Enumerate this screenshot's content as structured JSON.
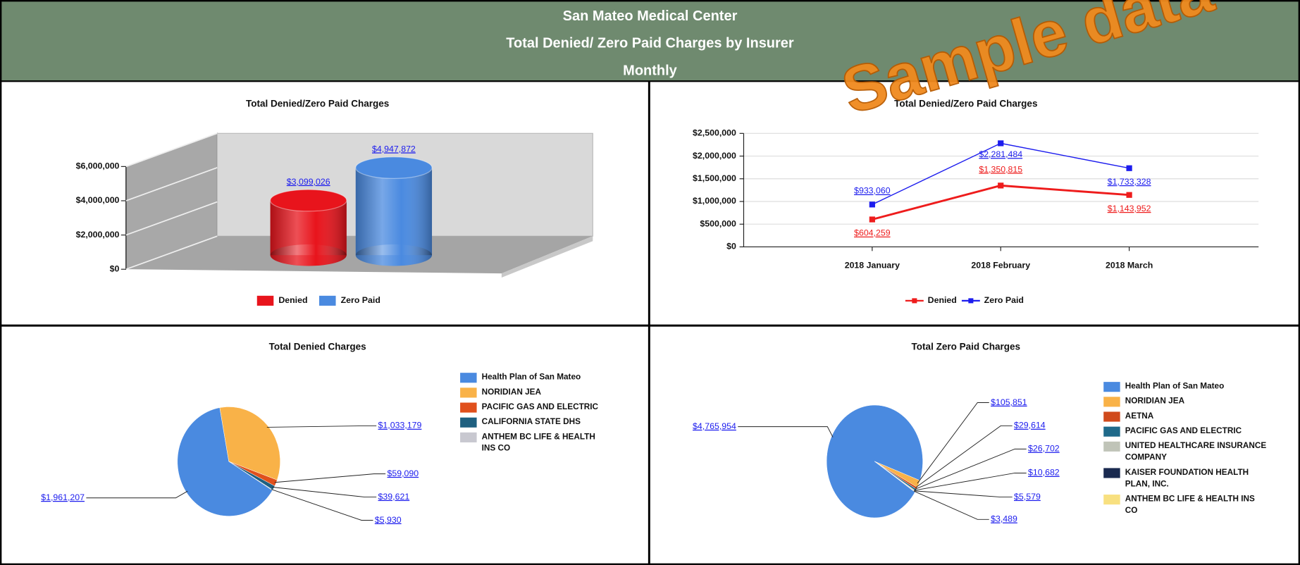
{
  "header": {
    "title": "San Mateo Medical Center",
    "subtitle": "Total Denied/ Zero Paid Charges by Insurer",
    "period": "Monthly"
  },
  "watermark": "Sample data",
  "chart_data": [
    {
      "type": "bar3d",
      "title": "Total Denied/Zero Paid Charges",
      "series": [
        {
          "name": "Denied",
          "color": "#e8141c",
          "values": [
            3099026
          ],
          "value_labels": [
            "$3,099,026"
          ]
        },
        {
          "name": "Zero Paid",
          "color": "#4a8ae0",
          "values": [
            4947872
          ],
          "value_labels": [
            "$4,947,872"
          ]
        }
      ],
      "ylim": [
        0,
        6000000
      ],
      "yticks": [
        {
          "value": 0,
          "label": "$0"
        },
        {
          "value": 2000000,
          "label": "$2,000,000"
        },
        {
          "value": 4000000,
          "label": "$4,000,000"
        },
        {
          "value": 6000000,
          "label": "$6,000,000"
        }
      ],
      "grid": true,
      "legend": "bottom"
    },
    {
      "type": "line",
      "title": "Total Denied/Zero Paid Charges",
      "categories": [
        "2018 January",
        "2018 February",
        "2018 March"
      ],
      "series": [
        {
          "name": "Denied",
          "color": "#ee1c1c",
          "values": [
            604259,
            1350815,
            1143952
          ],
          "value_labels": [
            "$604,259",
            "$1,350,815",
            "$1,143,952"
          ]
        },
        {
          "name": "Zero Paid",
          "color": "#1c1cee",
          "values": [
            933060,
            2281484,
            1733328
          ],
          "value_labels": [
            "$933,060",
            "$2,281,484",
            "$1,733,328"
          ]
        }
      ],
      "ylim": [
        0,
        2500000
      ],
      "yticks": [
        {
          "value": 0,
          "label": "$0"
        },
        {
          "value": 500000,
          "label": "$500,000"
        },
        {
          "value": 1000000,
          "label": "$1,000,000"
        },
        {
          "value": 1500000,
          "label": "$1,500,000"
        },
        {
          "value": 2000000,
          "label": "$2,000,000"
        },
        {
          "value": 2500000,
          "label": "$2,500,000"
        }
      ],
      "grid": true,
      "legend": "bottom"
    },
    {
      "type": "pie",
      "title": "Total Denied Charges",
      "categories": [
        "Health Plan of San Mateo",
        "NORIDIAN JEA",
        "PACIFIC GAS AND ELECTRIC",
        "CALIFORNIA STATE DHS",
        "ANTHEM BC LIFE & HEALTH INS CO"
      ],
      "values": [
        1961207,
        1033179,
        59090,
        39621,
        5930
      ],
      "value_labels": [
        "$1,961,207",
        "$1,033,179",
        "$59,090",
        "$39,621",
        "$5,930"
      ],
      "colors": [
        "#4a8ae0",
        "#f9b248",
        "#e0501c",
        "#1f6080",
        "#c8c8d0"
      ],
      "legend": "right"
    },
    {
      "type": "pie",
      "title": "Total Zero Paid Charges",
      "categories": [
        "Health Plan of San Mateo",
        "NORIDIAN JEA",
        "AETNA",
        "PACIFIC GAS AND ELECTRIC",
        "UNITED HEALTHCARE INSURANCE COMPANY",
        "KAISER FOUNDATION HEALTH PLAN, INC.",
        "ANTHEM BC LIFE & HEALTH INS CO"
      ],
      "values": [
        4765954,
        105851,
        29614,
        26702,
        10682,
        5579,
        3489
      ],
      "value_labels": [
        "$4,765,954",
        "$105,851",
        "$29,614",
        "$26,702",
        "$10,682",
        "$5,579",
        "$3,489"
      ],
      "colors": [
        "#4a8ae0",
        "#f9b248",
        "#d04a1c",
        "#1f6a8a",
        "#c0c4b8",
        "#1a2a50",
        "#f8e080"
      ],
      "legend": "right"
    }
  ]
}
